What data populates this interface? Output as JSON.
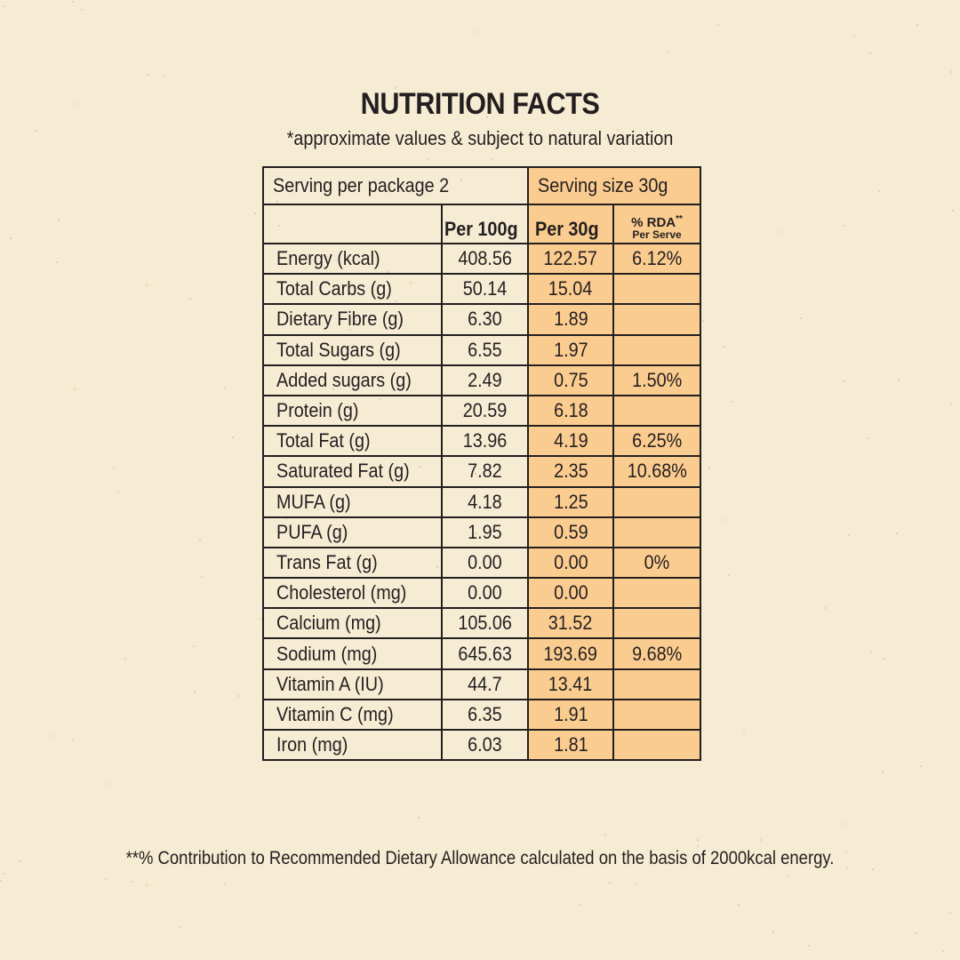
{
  "title": "NUTRITION FACTS",
  "subtitle": "*approximate values & subject to natural variation",
  "serving_per_package": "Serving per package 2",
  "serving_size": "Serving size 30g",
  "headers": {
    "per100g": "Per 100g",
    "per30g": "Per 30g",
    "rda": "% RDA",
    "rda_mark": "**",
    "rda_sub": "Per Serve"
  },
  "rows": [
    {
      "name": "Energy (kcal)",
      "per100g": "408.56",
      "per30g": "122.57",
      "rda": "6.12%"
    },
    {
      "name": "Total Carbs (g)",
      "per100g": "50.14",
      "per30g": "15.04",
      "rda": ""
    },
    {
      "name": "Dietary Fibre (g)",
      "per100g": "6.30",
      "per30g": "1.89",
      "rda": ""
    },
    {
      "name": "Total Sugars (g)",
      "per100g": "6.55",
      "per30g": "1.97",
      "rda": ""
    },
    {
      "name": "Added sugars (g)",
      "per100g": "2.49",
      "per30g": "0.75",
      "rda": "1.50%"
    },
    {
      "name": "Protein (g)",
      "per100g": "20.59",
      "per30g": "6.18",
      "rda": ""
    },
    {
      "name": "Total Fat (g)",
      "per100g": "13.96",
      "per30g": "4.19",
      "rda": "6.25%"
    },
    {
      "name": "Saturated Fat (g)",
      "per100g": "7.82",
      "per30g": "2.35",
      "rda": "10.68%"
    },
    {
      "name": "MUFA (g)",
      "per100g": "4.18",
      "per30g": "1.25",
      "rda": ""
    },
    {
      "name": "PUFA (g)",
      "per100g": "1.95",
      "per30g": "0.59",
      "rda": ""
    },
    {
      "name": "Trans Fat (g)",
      "per100g": "0.00",
      "per30g": "0.00",
      "rda": "0%"
    },
    {
      "name": "Cholesterol (mg)",
      "per100g": "0.00",
      "per30g": "0.00",
      "rda": ""
    },
    {
      "name": "Calcium (mg)",
      "per100g": "105.06",
      "per30g": "31.52",
      "rda": ""
    },
    {
      "name": "Sodium (mg)",
      "per100g": "645.63",
      "per30g": "193.69",
      "rda": "9.68%"
    },
    {
      "name": "Vitamin A (IU)",
      "per100g": "44.7",
      "per30g": "13.41",
      "rda": ""
    },
    {
      "name": "Vitamin C (mg)",
      "per100g": "6.35",
      "per30g": "1.91",
      "rda": ""
    },
    {
      "name": "Iron (mg)",
      "per100g": "6.03",
      "per30g": "1.81",
      "rda": ""
    }
  ],
  "footnote": "**% Contribution to Recommended Dietary Allowance calculated on the basis of 2000kcal energy.",
  "colors": {
    "background": "#f6ecd3",
    "highlight_column": "#fbcc8f",
    "text": "#231f20"
  }
}
